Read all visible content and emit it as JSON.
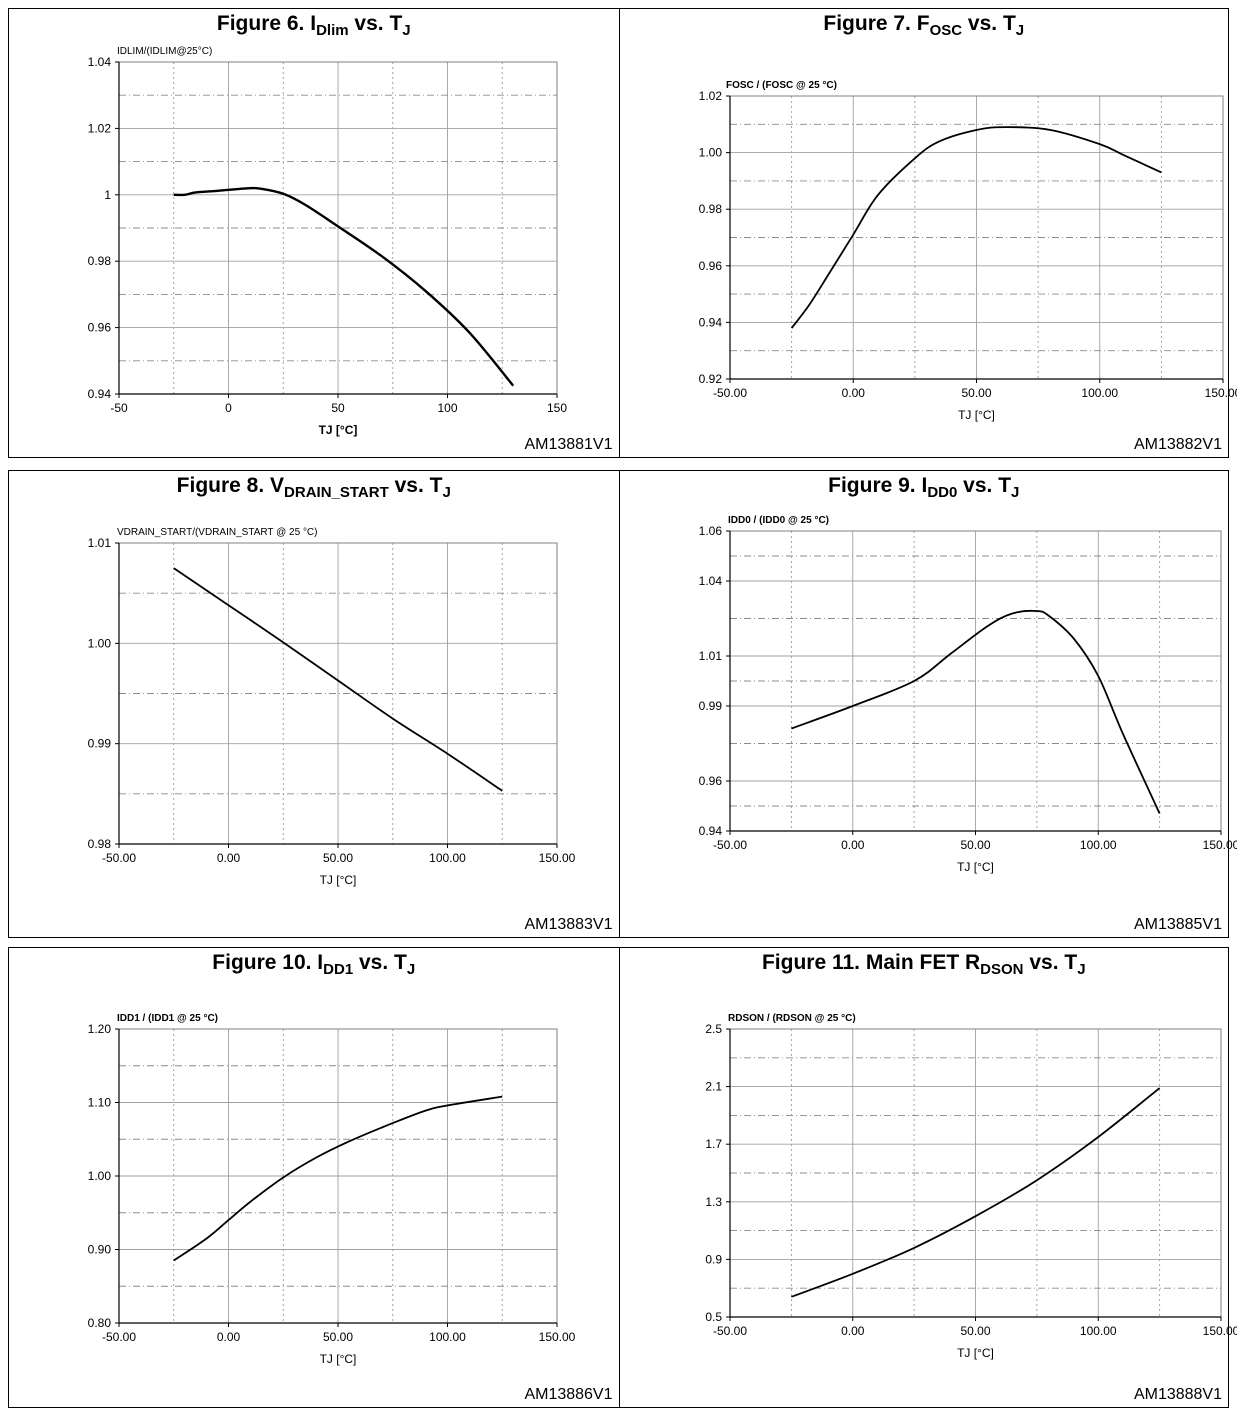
{
  "rows": [
    [
      {
        "title_parts": [
          [
            "Figure 6. I",
            ""
          ],
          [
            "Dlim",
            "sub"
          ],
          [
            " vs. T",
            ""
          ],
          [
            "J",
            "sub"
          ]
        ],
        "ref": "AM13881V1",
        "chart_data": {
          "type": "line",
          "ylabel": "IDLIM/(IDLIM@25°C)",
          "xlabel": "TJ [°C]",
          "xlim": [
            -50,
            150
          ],
          "ylim": [
            0.94,
            1.04
          ],
          "xticks": [
            -50,
            0,
            50,
            100,
            150
          ],
          "xtick_labels": [
            "-50",
            "0",
            "50",
            "100",
            "150"
          ],
          "yticks": [
            0.94,
            0.96,
            0.98,
            1.0,
            1.02,
            1.04
          ],
          "ytick_labels": [
            "0.94",
            "0.96",
            "0.98",
            "1",
            "1.02",
            "1.04"
          ],
          "minor_x_grid": true,
          "minor_y_grid": true,
          "series": [
            {
              "x": [
                -25,
                -20,
                -15,
                -5,
                0,
                10,
                15,
                25,
                35,
                50,
                70,
                90,
                110,
                130
              ],
              "values": [
                1.0,
                1.0,
                1.0007,
                1.0012,
                1.0015,
                1.002,
                1.0018,
                1.0003,
                0.997,
                0.9905,
                0.9815,
                0.971,
                0.9585,
                0.9425
              ]
            }
          ]
        }
      },
      {
        "title_parts": [
          [
            "Figure 7. F",
            ""
          ],
          [
            "OSC",
            "sub"
          ],
          [
            " vs. T",
            ""
          ],
          [
            "J",
            "sub"
          ]
        ],
        "ref": "AM13882V1",
        "chart_data": {
          "type": "line",
          "ylabel": "FOSC / (FOSC @ 25 °C)",
          "xlabel": "TJ [°C]",
          "xlim": [
            -50,
            150
          ],
          "ylim": [
            0.92,
            1.02
          ],
          "xticks": [
            -50,
            0,
            50,
            100,
            150
          ],
          "xtick_labels": [
            "-50.00",
            "0.00",
            "50.00",
            "100.00",
            "150.00"
          ],
          "yticks": [
            0.92,
            0.94,
            0.96,
            0.98,
            1.0,
            1.02
          ],
          "ytick_labels": [
            "0.92",
            "0.94",
            "0.96",
            "0.98",
            "1.00",
            "1.02"
          ],
          "minor_x_grid": true,
          "minor_y_grid": true,
          "series": [
            {
              "x": [
                -25,
                -18,
                -10,
                0,
                10,
                25,
                35,
                50,
                62,
                80,
                100,
                110,
                125
              ],
              "values": [
                0.938,
                0.946,
                0.957,
                0.971,
                0.985,
                0.998,
                1.004,
                1.008,
                1.009,
                1.008,
                1.003,
                0.999,
                0.993
              ]
            }
          ]
        }
      }
    ],
    [
      {
        "title_parts": [
          [
            "Figure 8. V",
            ""
          ],
          [
            "DRAIN_START",
            "sub"
          ],
          [
            " vs. T",
            ""
          ],
          [
            "J",
            "sub"
          ]
        ],
        "ref": "AM13883V1",
        "chart_data": {
          "type": "line",
          "ylabel": "VDRAIN_START/(VDRAIN_START @ 25 °C)",
          "xlabel": "TJ [°C]",
          "xlim": [
            -50,
            150
          ],
          "ylim": [
            0.98,
            1.01
          ],
          "xticks": [
            -50,
            0,
            50,
            100,
            150
          ],
          "xtick_labels": [
            "-50.00",
            "0.00",
            "50.00",
            "100.00",
            "150.00"
          ],
          "yticks": [
            0.98,
            0.99,
            1.0,
            1.01
          ],
          "ytick_labels": [
            "0.98",
            "0.99",
            "1.00",
            "1.01"
          ],
          "minor_x_grid": true,
          "minor_y_grid": true,
          "series": [
            {
              "x": [
                -25,
                0,
                25,
                50,
                75,
                100,
                125
              ],
              "values": [
                1.0075,
                1.0038,
                1.0001,
                0.9963,
                0.9925,
                0.989,
                0.9853
              ]
            }
          ]
        }
      },
      {
        "title_parts": [
          [
            "Figure 9. I",
            ""
          ],
          [
            "DD0",
            "sub"
          ],
          [
            " vs. T",
            ""
          ],
          [
            "J",
            "sub"
          ]
        ],
        "ref": "AM13885V1",
        "chart_data": {
          "type": "line",
          "ylabel": "IDD0 / (IDD0 @ 25 °C)",
          "xlabel": "TJ [°C]",
          "xlim": [
            -50,
            150
          ],
          "ylim": [
            0.94,
            1.06
          ],
          "xticks": [
            -50,
            0,
            50,
            100,
            150
          ],
          "xtick_labels": [
            "-50.00",
            "0.00",
            "50.00",
            "100.00",
            "150.00"
          ],
          "yticks": [
            0.94,
            0.96,
            0.99,
            1.01,
            1.04,
            1.06
          ],
          "ytick_labels": [
            "0.94",
            "0.96",
            "0.99",
            "1.01",
            "1.04",
            "1.06"
          ],
          "minor_x_grid": true,
          "minor_y_grid": true,
          "series": [
            {
              "x": [
                -25,
                0,
                25,
                40,
                55,
                65,
                75,
                80,
                90,
                100,
                110,
                125
              ],
              "values": [
                0.981,
                0.99,
                1.0,
                1.011,
                1.022,
                1.027,
                1.028,
                1.026,
                1.017,
                1.002,
                0.979,
                0.947
              ]
            }
          ]
        }
      }
    ],
    [
      {
        "title_parts": [
          [
            "Figure 10. I",
            ""
          ],
          [
            "DD1",
            "sub"
          ],
          [
            " vs. T",
            ""
          ],
          [
            "J",
            "sub"
          ]
        ],
        "ref": "AM13886V1",
        "chart_data": {
          "type": "line",
          "ylabel": "IDD1 / (IDD1 @ 25 °C)",
          "xlabel": "TJ [°C]",
          "xlim": [
            -50,
            150
          ],
          "ylim": [
            0.8,
            1.2
          ],
          "xticks": [
            -50,
            0,
            50,
            100,
            150
          ],
          "xtick_labels": [
            "-50.00",
            "0.00",
            "50.00",
            "100.00",
            "150.00"
          ],
          "yticks": [
            0.8,
            0.9,
            1.0,
            1.1,
            1.2
          ],
          "ytick_labels": [
            "0.80",
            "0.90",
            "1.00",
            "1.10",
            "1.20"
          ],
          "minor_x_grid": true,
          "minor_y_grid": true,
          "series": [
            {
              "x": [
                -25,
                -10,
                0,
                10,
                25,
                40,
                55,
                75,
                90,
                100,
                125
              ],
              "values": [
                0.885,
                0.915,
                0.94,
                0.965,
                0.998,
                1.025,
                1.047,
                1.072,
                1.089,
                1.096,
                1.108
              ]
            }
          ]
        }
      },
      {
        "title_parts": [
          [
            "Figure 11. Main FET R",
            ""
          ],
          [
            "DSON",
            "sub"
          ],
          [
            " vs. T",
            ""
          ],
          [
            "J",
            "sub"
          ]
        ],
        "ref": "AM13888V1",
        "chart_data": {
          "type": "line",
          "ylabel": "RDSON / (RDSON @ 25 °C)",
          "xlabel": "TJ [°C]",
          "xlim": [
            -50,
            150
          ],
          "ylim": [
            0.5,
            2.5
          ],
          "xticks": [
            -50,
            0,
            50,
            100,
            150
          ],
          "xtick_labels": [
            "-50.00",
            "0.00",
            "50.00",
            "100.00",
            "150.00"
          ],
          "yticks": [
            0.5,
            0.9,
            1.3,
            1.7,
            2.1,
            2.5
          ],
          "ytick_labels": [
            "0.5",
            "0.9",
            "1.3",
            "1.7",
            "2.1",
            "2.5"
          ],
          "minor_x_grid": true,
          "minor_y_grid": true,
          "series": [
            {
              "x": [
                -25,
                0,
                25,
                50,
                75,
                100,
                125
              ],
              "values": [
                0.64,
                0.8,
                0.98,
                1.2,
                1.45,
                1.75,
                2.09
              ]
            }
          ]
        }
      }
    ]
  ]
}
